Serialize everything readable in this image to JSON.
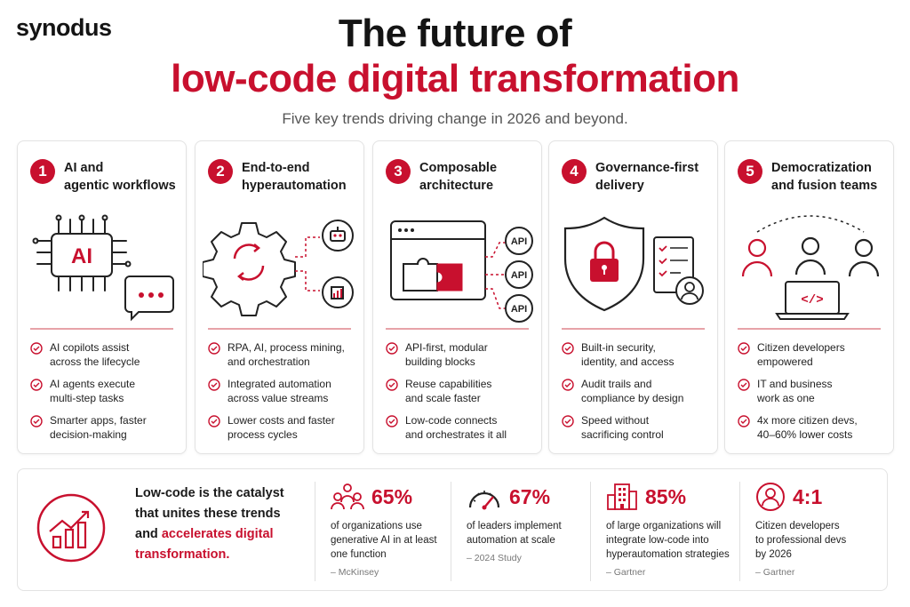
{
  "brand": {
    "logo": "synodus"
  },
  "header": {
    "title_line1": "The future of",
    "title_line2": "low-code digital transformation",
    "subtitle": "Five key trends driving change in 2026 and beyond."
  },
  "colors": {
    "accent": "#c8102e",
    "text": "#1a1a1a",
    "border": "#e3e3e3"
  },
  "trends": [
    {
      "number": "1",
      "title": "AI and\nagentic workflows",
      "icon": "ai-chip-icon",
      "chip_label": "AI",
      "bullets": [
        "AI copilots assist\nacross the lifecycle",
        "AI agents execute\nmulti-step tasks",
        "Smarter apps, faster\ndecision-making"
      ]
    },
    {
      "number": "2",
      "title": "End-to-end\nhyperautomation",
      "icon": "gear-automation-icon",
      "bullets": [
        "RPA, AI, process mining,\nand orchestration",
        "Integrated automation\nacross value streams",
        "Lower costs and faster\nprocess cycles"
      ]
    },
    {
      "number": "3",
      "title": "Composable\narchitecture",
      "icon": "puzzle-api-icon",
      "api_label": "API",
      "bullets": [
        "API-first, modular\nbuilding blocks",
        "Reuse capabilities\nand scale faster",
        "Low-code connects\nand orchestrates it all"
      ]
    },
    {
      "number": "4",
      "title": "Governance-first\ndelivery",
      "icon": "shield-lock-icon",
      "bullets": [
        "Built-in security,\nidentity, and access",
        "Audit trails and\ncompliance by design",
        "Speed without\nsacrificing control"
      ]
    },
    {
      "number": "5",
      "title": "Democratization\nand fusion teams",
      "icon": "team-laptop-icon",
      "laptop_label": "</>",
      "bullets": [
        "Citizen developers\nempowered",
        "IT and business\nwork as one",
        "4x more citizen devs,\n40–60% lower costs"
      ]
    }
  ],
  "summary": {
    "icon": "growth-chart-icon",
    "line1": "Low-code is the catalyst",
    "line2": "that unites these trends",
    "line3_pre": "and ",
    "line3_red": "accelerates digital",
    "line4_red": "transformation."
  },
  "stats": [
    {
      "icon": "people-network-icon",
      "value": "65%",
      "description": "of organizations use\ngenerative AI in at least\none function",
      "source": "– McKinsey"
    },
    {
      "icon": "speedometer-icon",
      "value": "67%",
      "description": "of leaders implement\nautomation at scale",
      "source": "– 2024 Study"
    },
    {
      "icon": "building-icon",
      "value": "85%",
      "description": "of large organizations will\nintegrate low-code into\nhyperautomation strategies",
      "source": "– Gartner"
    },
    {
      "icon": "user-circle-icon",
      "value": "4:1",
      "description": "Citizen developers\nto professional devs\nby 2026",
      "source": "– Gartner"
    }
  ]
}
